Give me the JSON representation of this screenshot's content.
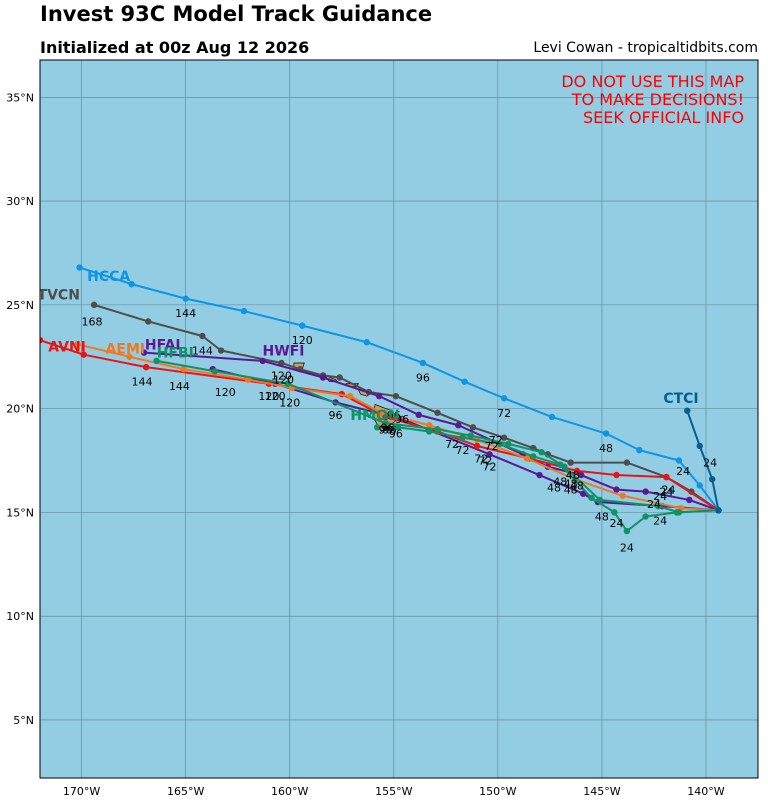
{
  "header": {
    "title": "Invest 93C Model Track Guidance",
    "subtitle": "Initialized at 00z Aug 12 2026",
    "credit": "Levi Cowan - tropicaltidbits.com"
  },
  "warning": [
    "DO NOT USE THIS MAP",
    "TO MAKE DECISIONS!",
    "SEEK OFFICIAL INFO"
  ],
  "colors": {
    "ocean": "#93cde3",
    "land": "#c8a064",
    "grid": "#5a8292"
  },
  "map": {
    "lon_range": [
      -172,
      -137.5
    ],
    "lat_range": [
      2.2,
      36.8
    ],
    "lon_ticks": [
      -170,
      -165,
      -160,
      -155,
      -150,
      -145,
      -140
    ],
    "lon_tick_labels": [
      "170°W",
      "165°W",
      "160°W",
      "155°W",
      "150°W",
      "145°W",
      "140°W"
    ],
    "lat_ticks": [
      5,
      10,
      15,
      20,
      25,
      30,
      35
    ],
    "lat_tick_labels": [
      "5°N",
      "10°N",
      "15°N",
      "20°N",
      "25°N",
      "30°N",
      "35°N"
    ]
  },
  "models": [
    {
      "name": "HCCA",
      "color": "#0e95e6",
      "points": [
        [
          -139.4,
          15.1
        ],
        [
          -140.3,
          16.3
        ],
        [
          -141.3,
          17.5
        ],
        [
          -143.2,
          18.0
        ],
        [
          -144.8,
          18.8
        ],
        [
          -147.4,
          19.6
        ],
        [
          -149.7,
          20.5
        ],
        [
          -151.6,
          21.3
        ],
        [
          -153.6,
          22.2
        ],
        [
          -156.3,
          23.2
        ],
        [
          -159.4,
          24.0
        ],
        [
          -162.2,
          24.7
        ],
        [
          -165.0,
          25.3
        ],
        [
          -167.6,
          26.0
        ],
        [
          -170.1,
          26.8
        ]
      ],
      "hour_labels": [
        {
          "text": "24",
          "lon": -141.1,
          "lat": 17.0
        },
        {
          "text": "48",
          "lon": -144.8,
          "lat": 18.1
        },
        {
          "text": "72",
          "lon": -149.7,
          "lat": 19.8
        },
        {
          "text": "96",
          "lon": -153.6,
          "lat": 21.5
        },
        {
          "text": "120",
          "lon": -159.4,
          "lat": 23.3
        },
        {
          "text": "144",
          "lon": -165.0,
          "lat": 24.6
        }
      ],
      "label": {
        "text": "HCCA",
        "lon": -168.7,
        "lat": 26.4
      }
    },
    {
      "name": "TVCN",
      "color": "#4d4d4d",
      "points": [
        [
          -139.4,
          15.1
        ],
        [
          -140.7,
          16.0
        ],
        [
          -141.9,
          16.7
        ],
        [
          -143.8,
          17.4
        ],
        [
          -146.5,
          17.4
        ],
        [
          -147.6,
          17.8
        ],
        [
          -148.3,
          18.1
        ],
        [
          -149.7,
          18.6
        ],
        [
          -151.2,
          19.1
        ],
        [
          -152.9,
          19.8
        ],
        [
          -154.9,
          20.6
        ],
        [
          -156.2,
          20.8
        ],
        [
          -157.6,
          21.5
        ],
        [
          -158.4,
          21.6
        ],
        [
          -159.5,
          21.9
        ],
        [
          -160.4,
          22.2
        ],
        [
          -163.3,
          22.8
        ],
        [
          -164.2,
          23.5
        ],
        [
          -166.8,
          24.2
        ],
        [
          -169.4,
          25.0
        ]
      ],
      "hour_labels": [
        {
          "text": "24",
          "lon": -141.8,
          "lat": 16.1
        },
        {
          "text": "48",
          "lon": -146.4,
          "lat": 16.8
        },
        {
          "text": "72",
          "lon": -150.3,
          "lat": 18.2
        },
        {
          "text": "96",
          "lon": -155.0,
          "lat": 19.7
        },
        {
          "text": "120",
          "lon": -160.3,
          "lat": 21.4
        },
        {
          "text": "144",
          "lon": -164.2,
          "lat": 22.8
        },
        {
          "text": "168",
          "lon": -169.5,
          "lat": 24.2
        }
      ],
      "label": {
        "text": "TVCN",
        "lon": -171.1,
        "lat": 25.5
      }
    },
    {
      "name": "HFAI",
      "color": "#5b1892",
      "points": [
        [
          -139.4,
          15.1
        ],
        [
          -140.8,
          15.6
        ],
        [
          -142.9,
          16.0
        ],
        [
          -144.3,
          16.1
        ],
        [
          -146.0,
          16.8
        ],
        [
          -147.6,
          17.2
        ],
        [
          -148.8,
          17.8
        ],
        [
          -151.9,
          19.2
        ],
        [
          -153.8,
          19.7
        ],
        [
          -155.7,
          20.6
        ],
        [
          -158.4,
          21.5
        ],
        [
          -161.3,
          22.3
        ],
        [
          -167.0,
          22.7
        ]
      ],
      "hour_labels": [
        {
          "text": "24",
          "lon": -142.5,
          "lat": 15.4
        },
        {
          "text": "48",
          "lon": -146.5,
          "lat": 16.4
        },
        {
          "text": "72",
          "lon": -150.1,
          "lat": 18.5
        },
        {
          "text": "96",
          "lon": -154.6,
          "lat": 19.5
        },
        {
          "text": "120",
          "lon": -160.4,
          "lat": 21.6
        }
      ],
      "label": {
        "text": "HFAI",
        "lon": -166.1,
        "lat": 23.1
      }
    },
    {
      "name": "HWFI",
      "color": "#5b1892",
      "points": [
        [
          -139.4,
          15.1
        ],
        [
          -142.1,
          15.3
        ],
        [
          -145.2,
          15.5
        ],
        [
          -145.9,
          15.9
        ],
        [
          -148.0,
          16.8
        ],
        [
          -150.4,
          17.8
        ],
        [
          -154.6,
          19.5
        ],
        [
          -157.8,
          20.3
        ],
        [
          -160.7,
          21.2
        ],
        [
          -163.7,
          21.9
        ]
      ],
      "hour_labels": [
        {
          "text": "24",
          "lon": -142.2,
          "lat": 14.6
        },
        {
          "text": "48",
          "lon": -147.3,
          "lat": 16.2
        },
        {
          "text": "72",
          "lon": -150.4,
          "lat": 17.2
        },
        {
          "text": "96",
          "lon": -157.8,
          "lat": 19.7
        },
        {
          "text": "120",
          "lon": -160.7,
          "lat": 20.6
        }
      ],
      "label": {
        "text": "HWFI",
        "lon": -160.3,
        "lat": 22.8
      }
    },
    {
      "name": "AVNI",
      "color": "#e81515",
      "points": [
        [
          -139.4,
          15.1
        ],
        [
          -141.9,
          16.7
        ],
        [
          -144.3,
          16.8
        ],
        [
          -146.2,
          17.0
        ],
        [
          -148.5,
          17.6
        ],
        [
          -151.0,
          18.2
        ],
        [
          -152.9,
          18.9
        ],
        [
          -155.4,
          19.6
        ],
        [
          -157.5,
          20.7
        ],
        [
          -161.0,
          21.2
        ],
        [
          -166.9,
          22.0
        ],
        [
          -169.9,
          22.6
        ],
        [
          -172.0,
          23.3
        ]
      ],
      "hour_labels": [
        {
          "text": "24",
          "lon": -141.9,
          "lat": 16.0
        },
        {
          "text": "48",
          "lon": -146.2,
          "lat": 16.3
        },
        {
          "text": "72",
          "lon": -150.6,
          "lat": 17.5
        },
        {
          "text": "96",
          "lon": -155.4,
          "lat": 19.0
        },
        {
          "text": "120",
          "lon": -161.0,
          "lat": 20.6
        },
        {
          "text": "144",
          "lon": -167.1,
          "lat": 21.3
        }
      ],
      "label": {
        "text": "AVNI",
        "lon": -170.7,
        "lat": 23.0
      }
    },
    {
      "name": "AEMI",
      "color": "#f0781e",
      "points": [
        [
          -139.4,
          15.1
        ],
        [
          -141.2,
          15.2
        ],
        [
          -144.0,
          15.8
        ],
        [
          -146.3,
          16.6
        ],
        [
          -148.6,
          17.6
        ],
        [
          -151.0,
          18.5
        ],
        [
          -153.3,
          19.2
        ],
        [
          -155.6,
          19.8
        ],
        [
          -157.1,
          20.6
        ],
        [
          -159.9,
          21.0
        ],
        [
          -162.0,
          21.4
        ],
        [
          -165.1,
          21.9
        ],
        [
          -167.7,
          22.5
        ],
        [
          -170.2,
          23.1
        ]
      ],
      "hour_labels": [
        {
          "text": "24",
          "lon": -142.2,
          "lat": 15.8
        },
        {
          "text": "48",
          "lon": -146.5,
          "lat": 16.1
        },
        {
          "text": "72",
          "lon": -150.8,
          "lat": 17.6
        },
        {
          "text": "96",
          "lon": -155.3,
          "lat": 19.1
        },
        {
          "text": "120",
          "lon": -163.1,
          "lat": 20.8
        },
        {
          "text": "144",
          "lon": -165.3,
          "lat": 21.1
        }
      ],
      "label": {
        "text": "AEMI",
        "lon": -167.9,
        "lat": 22.9
      }
    },
    {
      "name": "HMON",
      "color": "#0e9266",
      "points": [
        [
          -139.4,
          15.1
        ],
        [
          -141.3,
          15.0
        ],
        [
          -142.3,
          15.3
        ],
        [
          -145.1,
          15.6
        ],
        [
          -146.8,
          17.2
        ],
        [
          -147.9,
          17.9
        ],
        [
          -149.5,
          18.3
        ],
        [
          -151.3,
          18.7
        ],
        [
          -152.9,
          19.0
        ],
        [
          -155.4,
          19.3
        ],
        [
          -160.1,
          21.2
        ],
        [
          -163.6,
          21.8
        ],
        [
          -166.4,
          22.3
        ]
      ],
      "hour_labels": [
        {
          "text": "48",
          "lon": -145.0,
          "lat": 14.8
        },
        {
          "text": "72",
          "lon": -152.2,
          "lat": 18.3
        },
        {
          "text": "96",
          "lon": -155.2,
          "lat": 19.0
        },
        {
          "text": "120",
          "lon": -160.0,
          "lat": 20.3
        }
      ],
      "label": {
        "text": "HMON",
        "lon": -155.9,
        "lat": 19.7
      }
    },
    {
      "name": "HFBI",
      "color": "#0e9266",
      "points": [
        [
          -139.4,
          15.1
        ],
        [
          -141.4,
          15.0
        ],
        [
          -142.9,
          14.8
        ],
        [
          -143.8,
          14.1
        ],
        [
          -144.4,
          15.0
        ],
        [
          -145.5,
          15.7
        ],
        [
          -147.0,
          17.3
        ],
        [
          -148.3,
          17.7
        ],
        [
          -149.9,
          18.3
        ],
        [
          -151.7,
          18.6
        ],
        [
          -153.3,
          18.9
        ],
        [
          -154.8,
          19.1
        ],
        [
          -155.8,
          19.1
        ]
      ],
      "hour_labels": [
        {
          "text": "24",
          "lon": -143.8,
          "lat": 13.3
        },
        {
          "text": "24",
          "lon": -144.3,
          "lat": 14.5
        },
        {
          "text": "48",
          "lon": -147.0,
          "lat": 16.5
        },
        {
          "text": "72",
          "lon": -151.7,
          "lat": 18.0
        },
        {
          "text": "96",
          "lon": -154.9,
          "lat": 18.8
        }
      ],
      "label": {
        "text": "HFBI",
        "lon": -165.5,
        "lat": 22.7
      }
    },
    {
      "name": "CTCI",
      "color": "#065f91",
      "points": [
        [
          -139.4,
          15.1
        ],
        [
          -139.7,
          16.6
        ],
        [
          -140.3,
          18.2
        ],
        [
          -140.9,
          19.9
        ]
      ],
      "hour_labels": [
        {
          "text": "24",
          "lon": -139.8,
          "lat": 17.4
        }
      ],
      "label": {
        "text": "CTCI",
        "lon": -141.2,
        "lat": 20.5
      }
    }
  ],
  "islands": [
    {
      "name": "hawaii",
      "poly": [
        [
          -155.9,
          20.2
        ],
        [
          -155.1,
          19.9
        ],
        [
          -154.8,
          19.5
        ],
        [
          -155.6,
          18.9
        ],
        [
          -156.0,
          19.6
        ]
      ]
    },
    {
      "name": "maui",
      "poly": [
        [
          -156.7,
          20.9
        ],
        [
          -156.0,
          20.8
        ],
        [
          -156.3,
          20.6
        ],
        [
          -156.6,
          20.7
        ]
      ]
    },
    {
      "name": "molokai",
      "poly": [
        [
          -157.3,
          21.2
        ],
        [
          -156.7,
          21.2
        ],
        [
          -156.8,
          21.05
        ],
        [
          -157.3,
          21.1
        ]
      ]
    },
    {
      "name": "oahu",
      "poly": [
        [
          -158.3,
          21.6
        ],
        [
          -157.8,
          21.4
        ],
        [
          -157.7,
          21.3
        ],
        [
          -158.1,
          21.3
        ]
      ]
    },
    {
      "name": "kauai",
      "poly": [
        [
          -159.8,
          22.2
        ],
        [
          -159.3,
          22.2
        ],
        [
          -159.4,
          21.9
        ],
        [
          -159.8,
          21.9
        ]
      ]
    }
  ]
}
